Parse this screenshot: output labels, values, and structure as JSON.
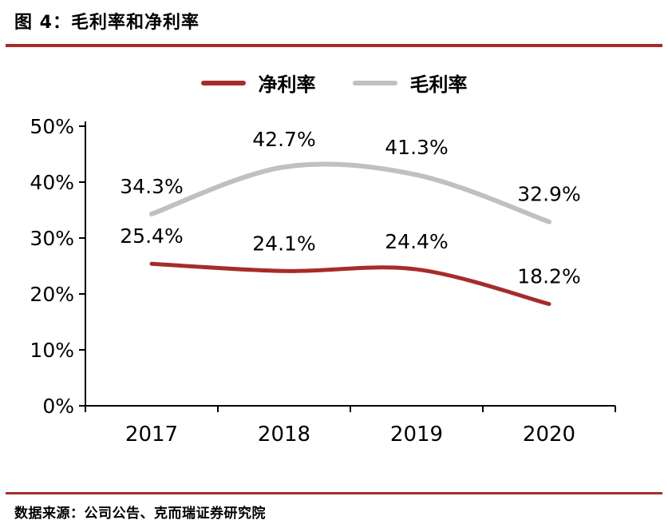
{
  "header": {
    "title": "图 4：毛利率和净利率"
  },
  "footer": {
    "source": "数据来源：公司公告、克而瑞证券研究院"
  },
  "colors": {
    "accent": "#a62c2a",
    "net_margin_line": "#a62c2a",
    "gross_margin_line": "#c0c0c0",
    "axis": "#000000"
  },
  "chart_data": {
    "type": "line",
    "title": "毛利率和净利率",
    "categories": [
      "2017",
      "2018",
      "2019",
      "2020"
    ],
    "series": [
      {
        "name": "净利率",
        "color": "#a62c2a",
        "values": [
          25.4,
          24.1,
          24.4,
          18.2
        ],
        "labels": [
          "25.4%",
          "24.1%",
          "24.4%",
          "18.2%"
        ]
      },
      {
        "name": "毛利率",
        "color": "#c0c0c0",
        "values": [
          34.3,
          42.7,
          41.3,
          32.9
        ],
        "labels": [
          "34.3%",
          "42.7%",
          "41.3%",
          "32.9%"
        ]
      }
    ],
    "ylim": [
      0,
      50
    ],
    "ytick_step": 10,
    "ytick_labels": [
      "0%",
      "10%",
      "20%",
      "30%",
      "40%",
      "50%"
    ],
    "grid": false,
    "legend_position": "top",
    "data_labels": true,
    "smooth_lines": true
  }
}
